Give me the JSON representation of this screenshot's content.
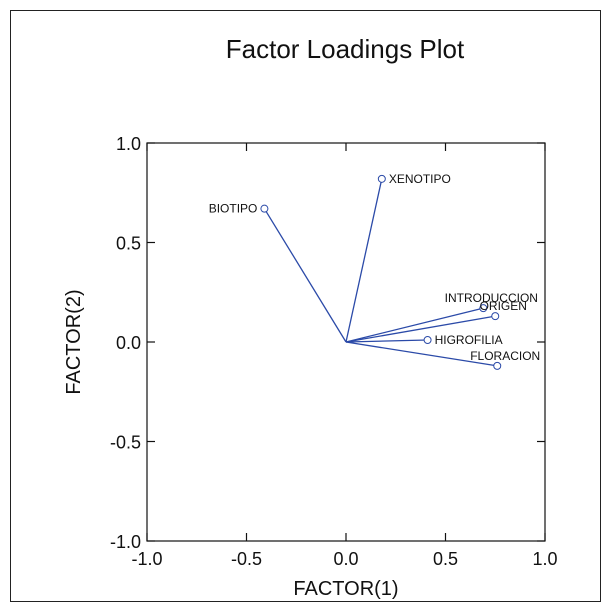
{
  "chart_data": {
    "type": "scatter",
    "title": "Factor Loadings Plot",
    "xlabel": "FACTOR(1)",
    "ylabel": "FACTOR(2)",
    "xlim": [
      -1.0,
      1.0
    ],
    "ylim": [
      -1.0,
      1.0
    ],
    "xticks": [
      "-1.0",
      "-0.5",
      "0.0",
      "0.5",
      "1.0"
    ],
    "yticks": [
      "-1.0",
      "-0.5",
      "0.0",
      "0.5",
      "1.0"
    ],
    "grid": false,
    "origin": [
      0,
      0
    ],
    "line_color": "#2b4aa8",
    "marker_color": "#2b4aa8",
    "points": [
      {
        "label": "BIOTIPO",
        "x": -0.41,
        "y": 0.67,
        "label_side": "left"
      },
      {
        "label": "XENOTIPO",
        "x": 0.18,
        "y": 0.82,
        "label_side": "right"
      },
      {
        "label": "INTRODUCCION",
        "x": 0.69,
        "y": 0.17,
        "label_side": "above"
      },
      {
        "label": "ORIGEN",
        "x": 0.75,
        "y": 0.13,
        "label_side": "above"
      },
      {
        "label": "HIGROFILIA",
        "x": 0.41,
        "y": 0.01,
        "label_side": "right"
      },
      {
        "label": "FLORACION",
        "x": 0.76,
        "y": -0.12,
        "label_side": "above"
      }
    ]
  }
}
